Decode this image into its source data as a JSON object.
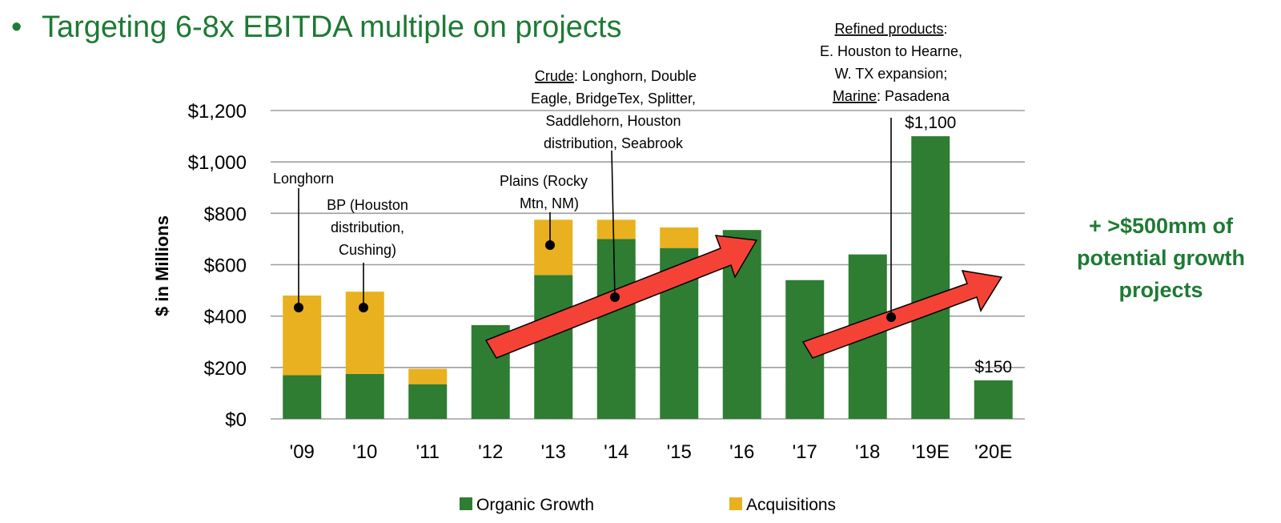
{
  "colors": {
    "organic": "#2e7d32",
    "acquisitions": "#e9b11f",
    "arrow": "#f44336",
    "heading": "#1e7a35",
    "grid": "#9e9e9e",
    "text": "#000000"
  },
  "heading": {
    "bullet": "•",
    "text": "Targeting 6-8x EBITDA multiple on projects"
  },
  "growth_callout": [
    "+ >$500mm of",
    "potential growth",
    "projects"
  ],
  "chart_data": {
    "type": "bar",
    "stacked": true,
    "title": "",
    "xlabel": "",
    "ylabel": "$ in Millions",
    "ylim": [
      0,
      1200
    ],
    "yticks": [
      0,
      200,
      400,
      600,
      800,
      1000,
      1200
    ],
    "ytick_labels": [
      "$0",
      "$200",
      "$400",
      "$600",
      "$800",
      "$1,000",
      "$1,200"
    ],
    "categories": [
      "'09",
      "'10",
      "'11",
      "'12",
      "'13",
      "'14",
      "'15",
      "'16",
      "'17",
      "'18",
      "'19E",
      "'20E"
    ],
    "series": [
      {
        "name": "Organic Growth",
        "color_key": "organic",
        "values": [
          170,
          175,
          135,
          365,
          560,
          700,
          665,
          735,
          540,
          640,
          1100,
          150
        ]
      },
      {
        "name": "Acquisitions",
        "color_key": "acquisitions",
        "values": [
          310,
          320,
          60,
          0,
          215,
          75,
          80,
          0,
          0,
          0,
          0,
          0
        ]
      }
    ],
    "data_labels": [
      {
        "category": "'19E",
        "value": 1100,
        "text": "$1,100"
      },
      {
        "category": "'20E",
        "value": 150,
        "text": "$150"
      }
    ],
    "legend": {
      "position": "bottom",
      "entries": [
        "Organic Growth",
        "Acquisitions"
      ]
    },
    "grid": true,
    "annotations": {
      "longhorn": [
        "Longhorn"
      ],
      "bp": [
        "BP (Houston",
        "distribution,",
        "Cushing)"
      ],
      "plains": [
        "Plains (Rocky",
        "Mtn, NM)"
      ],
      "crude": {
        "label": "Crude",
        "lines": [
          ": Longhorn, Double",
          "Eagle, BridgeTex, Splitter,",
          "Saddlehorn, Houston",
          "distribution, Seabrook"
        ]
      },
      "refined": {
        "label": "Refined products",
        "label_suffix": ":",
        "lines": [
          "E. Houston to Hearne,",
          "W. TX expansion;"
        ],
        "marine_label": "Marine",
        "marine_text": ": Pasadena"
      }
    }
  }
}
